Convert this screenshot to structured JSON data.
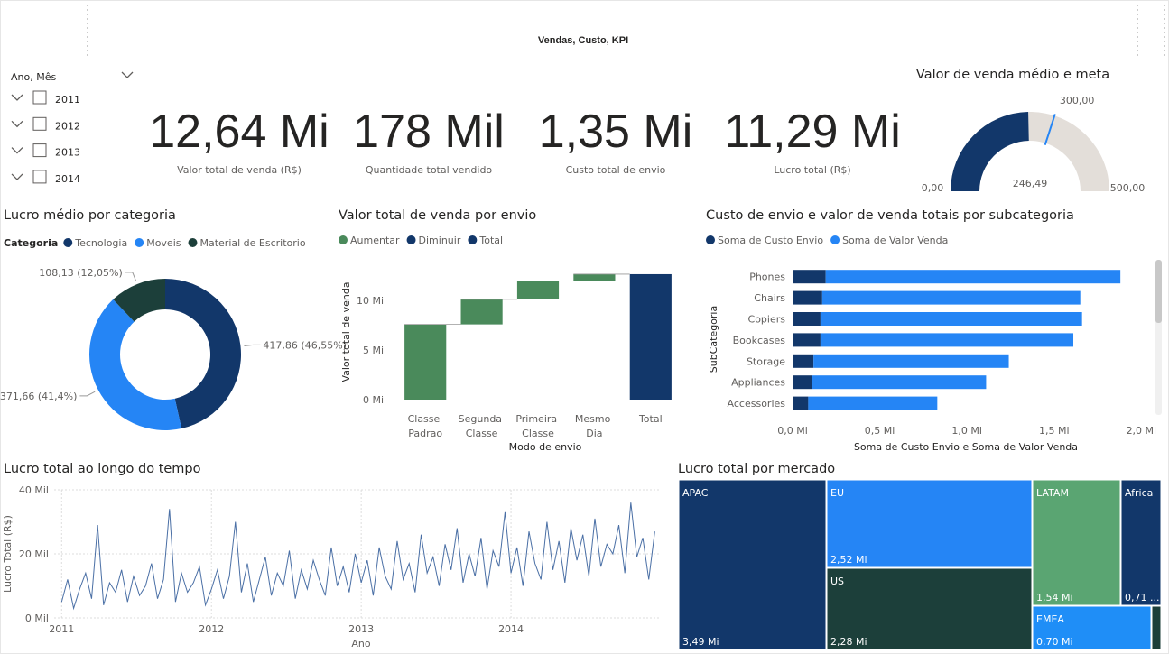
{
  "title": "Vendas, Custo, KPI",
  "slicer": {
    "title": "Ano, Mês",
    "items": [
      "2011",
      "2012",
      "2013",
      "2014"
    ]
  },
  "kpis": [
    {
      "value": "12,64 Mi",
      "label": "Valor total de venda (R$)"
    },
    {
      "value": "178 Mil",
      "label": "Quantidade total vendido"
    },
    {
      "value": "1,35 Mi",
      "label": "Custo total de envio"
    },
    {
      "value": "11,29 Mi",
      "label": "Lucro total (R$)"
    }
  ],
  "chart_data": [
    {
      "type": "gauge",
      "title": "Valor de venda médio e meta",
      "values": [
        246.49
      ],
      "value_labels": [
        "246,49"
      ],
      "target": {
        "value": 300,
        "label": "300,00"
      },
      "ylim": [
        0,
        500
      ],
      "yticks": [
        {
          "value": 0,
          "label": "0,00"
        },
        {
          "value": 500,
          "label": "500,00"
        }
      ],
      "color": "#12376a",
      "track_color": "#e3ded9",
      "target_color": "#2585f5"
    },
    {
      "type": "donut",
      "title": "Lucro médio por categoria",
      "legend_title": "Categoria",
      "categories": [
        "Tecnologia",
        "Moveis",
        "Material de Escritorio"
      ],
      "values": [
        417.86,
        371.66,
        108.13
      ],
      "value_labels": [
        "417,86 (46,55%)",
        "371,66 (41,4%)",
        "108,13 (12,05%)"
      ],
      "colors": [
        "#12376a",
        "#2585f5",
        "#1c3f3a"
      ]
    },
    {
      "type": "waterfall",
      "title": "Valor total de venda por envio",
      "x_label": "Modo de envio",
      "y_label": "Valor total de venda",
      "legend": [
        {
          "name": "Aumentar",
          "color": "#4a8a5b"
        },
        {
          "name": "Diminuir",
          "color": "#12376a"
        },
        {
          "name": "Total",
          "color": "#12376a"
        }
      ],
      "categories": [
        "Classe Padrao",
        "Segunda Classe",
        "Primeira Classe",
        "Mesmo Dia",
        "Total"
      ],
      "kinds": [
        "Aumentar",
        "Aumentar",
        "Aumentar",
        "Aumentar",
        "Total"
      ],
      "values": [
        7.58,
        2.52,
        1.84,
        0.7,
        12.64
      ],
      "ylim": [
        0,
        13
      ],
      "yticks": [
        {
          "value": 0,
          "label": "0 Mi"
        },
        {
          "value": 5,
          "label": "5 Mi"
        },
        {
          "value": 10,
          "label": "10 Mi"
        }
      ]
    },
    {
      "type": "hbar",
      "title": "Custo de envio e valor de venda totais por subcategoria",
      "x_label": "Soma de Custo Envio e Soma de Valor Venda",
      "y_label": "SubCategoria",
      "categories": [
        "Phones",
        "Chairs",
        "Copiers",
        "Bookcases",
        "Storage",
        "Appliances",
        "Accessories"
      ],
      "series": [
        {
          "name": "Soma de Custo Envio",
          "color": "#12376a",
          "values": [
            0.19,
            0.17,
            0.16,
            0.16,
            0.12,
            0.11,
            0.09
          ]
        },
        {
          "name": "Soma de Valor Venda",
          "color": "#2585f5",
          "values": [
            1.69,
            1.48,
            1.5,
            1.45,
            1.12,
            1.0,
            0.74
          ]
        }
      ],
      "stacked": true,
      "xlim": [
        0,
        2.05
      ],
      "xticks": [
        {
          "value": 0,
          "label": "0,0 Mi"
        },
        {
          "value": 0.5,
          "label": "0,5 Mi"
        },
        {
          "value": 1,
          "label": "1,0 Mi"
        },
        {
          "value": 1.5,
          "label": "1,5 Mi"
        },
        {
          "value": 2,
          "label": "2,0 Mi"
        }
      ]
    },
    {
      "type": "line",
      "title": "Lucro total ao longo do tempo",
      "x_label": "Ano",
      "y_label": "Lucro Total (R$)",
      "x": [
        2011,
        2011.04,
        2011.08,
        2011.12,
        2011.16,
        2011.2,
        2011.24,
        2011.28,
        2011.32,
        2011.36,
        2011.4,
        2011.44,
        2011.48,
        2011.52,
        2011.56,
        2011.6,
        2011.64,
        2011.68,
        2011.72,
        2011.76,
        2011.8,
        2011.84,
        2011.88,
        2011.92,
        2011.96,
        2012,
        2012.04,
        2012.08,
        2012.12,
        2012.16,
        2012.2,
        2012.24,
        2012.28,
        2012.32,
        2012.36,
        2012.4,
        2012.44,
        2012.48,
        2012.52,
        2012.56,
        2012.6,
        2012.64,
        2012.68,
        2012.72,
        2012.76,
        2012.8,
        2012.84,
        2012.88,
        2012.92,
        2012.96,
        2013,
        2013.04,
        2013.08,
        2013.12,
        2013.16,
        2013.2,
        2013.24,
        2013.28,
        2013.32,
        2013.36,
        2013.4,
        2013.44,
        2013.48,
        2013.52,
        2013.56,
        2013.6,
        2013.64,
        2013.68,
        2013.72,
        2013.76,
        2013.8,
        2013.84,
        2013.88,
        2013.92,
        2013.96,
        2014,
        2014.04,
        2014.08,
        2014.12,
        2014.16,
        2014.2,
        2014.24,
        2014.28,
        2014.32,
        2014.36,
        2014.4,
        2014.44,
        2014.48,
        2014.52,
        2014.56,
        2014.6,
        2014.64,
        2014.68,
        2014.72,
        2014.76,
        2014.8,
        2014.84,
        2014.88,
        2014.92,
        2014.96
      ],
      "values": [
        5,
        12,
        3,
        9,
        14,
        6,
        29,
        4,
        11,
        8,
        15,
        5,
        13,
        7,
        10,
        17,
        6,
        12,
        34,
        5,
        14,
        8,
        11,
        16,
        4,
        9,
        15,
        6,
        13,
        30,
        8,
        17,
        5,
        12,
        19,
        7,
        14,
        10,
        21,
        6,
        15,
        9,
        18,
        12,
        7,
        22,
        10,
        16,
        8,
        20,
        11,
        18,
        7,
        22,
        13,
        9,
        24,
        12,
        17,
        8,
        26,
        14,
        19,
        10,
        23,
        15,
        28,
        11,
        20,
        13,
        25,
        9,
        21,
        16,
        33,
        14,
        22,
        10,
        27,
        17,
        12,
        30,
        15,
        24,
        11,
        28,
        18,
        26,
        13,
        31,
        16,
        23,
        20,
        29,
        14,
        36,
        19,
        25,
        12,
        27
      ],
      "color": "#4a6fa5",
      "xlim": [
        2010.95,
        2015
      ],
      "xticks": [
        2011,
        2012,
        2013,
        2014
      ],
      "ylim": [
        0,
        40
      ],
      "yticks": [
        {
          "value": 0,
          "label": "0 Mil"
        },
        {
          "value": 20,
          "label": "20 Mil"
        },
        {
          "value": 40,
          "label": "40 Mil"
        }
      ],
      "grid": true
    },
    {
      "type": "treemap",
      "title": "Lucro total por mercado",
      "categories": [
        "APAC",
        "EU",
        "US",
        "LATAM",
        "Africa",
        "EMEA",
        null
      ],
      "values": [
        3.49,
        2.52,
        2.28,
        1.54,
        0.71,
        0.7,
        0.05
      ],
      "value_labels": [
        "3,49 Mi",
        "2,52 Mi",
        "2,28 Mi",
        "1,54 Mi",
        "0,71 ...",
        "0,70 Mi",
        null
      ],
      "colors": [
        "#12376a",
        "#2585f5",
        "#1c3f3a",
        "#5aa572",
        "#12376a",
        "#1f8ef7",
        "#1c3f3a"
      ]
    }
  ]
}
